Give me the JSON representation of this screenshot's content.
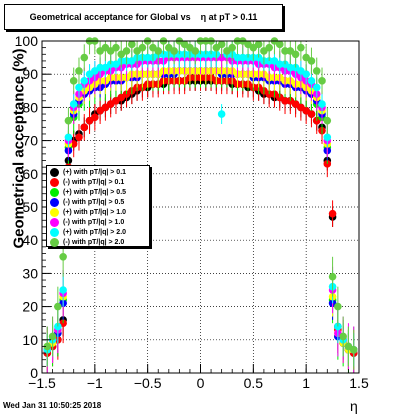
{
  "title": "Geometrical acceptance for Global vs    η at pT > 0.11",
  "timestamp": "Wed Jan 31 10:50:25 2018",
  "chart_data": {
    "type": "scatter",
    "xlabel": "η",
    "ylabel": "Geometrical acceptance (%)",
    "xlim": [
      -1.5,
      1.5
    ],
    "ylim": [
      0,
      100
    ],
    "xticks": [
      "−1.5",
      "−1",
      "−0.5",
      "0",
      "0.5",
      "1",
      "1.5"
    ],
    "yticks": [
      "0",
      "10",
      "20",
      "30",
      "40",
      "50",
      "60",
      "70",
      "80",
      "90",
      "100"
    ],
    "grid": true,
    "legend_position": "middle-left",
    "x": [
      -1.45,
      -1.4,
      -1.35,
      -1.3,
      -1.25,
      -1.2,
      -1.15,
      -1.1,
      -1.05,
      -1.0,
      -0.95,
      -0.9,
      -0.85,
      -0.8,
      -0.75,
      -0.7,
      -0.65,
      -0.6,
      -0.55,
      -0.5,
      -0.45,
      -0.4,
      -0.35,
      -0.3,
      -0.25,
      -0.2,
      -0.15,
      -0.1,
      -0.05,
      0.0,
      0.05,
      0.1,
      0.15,
      0.2,
      0.25,
      0.3,
      0.35,
      0.4,
      0.45,
      0.5,
      0.55,
      0.6,
      0.65,
      0.7,
      0.75,
      0.8,
      0.85,
      0.9,
      0.95,
      1.0,
      1.05,
      1.1,
      1.15,
      1.2,
      1.25,
      1.3,
      1.35,
      1.4,
      1.45
    ],
    "series": [
      {
        "name": "(+) with pT/|q| > 0.1",
        "color": "#000000",
        "values": [
          6,
          8,
          10,
          16,
          64,
          70,
          72,
          74,
          76,
          78,
          79,
          80,
          81,
          82,
          82,
          83,
          84,
          85,
          86,
          86,
          87,
          87,
          87,
          88,
          88,
          88,
          88,
          88,
          88,
          88,
          88,
          88,
          88,
          88,
          88,
          87,
          87,
          87,
          86,
          86,
          85,
          84,
          84,
          83,
          83,
          82,
          82,
          81,
          80,
          79,
          78,
          76,
          74,
          64,
          47,
          14,
          9,
          7,
          6
        ]
      },
      {
        "name": "(-) with pT/|q| > 0.1",
        "color": "#ff0000",
        "values": [
          6,
          8,
          10,
          15,
          62,
          69,
          71,
          74,
          76,
          77,
          79,
          80,
          81,
          82,
          83,
          84,
          85,
          86,
          86,
          87,
          87,
          87,
          88,
          88,
          88,
          88,
          88,
          89,
          89,
          89,
          89,
          89,
          88,
          88,
          88,
          88,
          87,
          87,
          87,
          86,
          86,
          85,
          84,
          84,
          83,
          82,
          82,
          81,
          80,
          79,
          78,
          76,
          73,
          63,
          48,
          13,
          9,
          7,
          6
        ]
      },
      {
        "name": "(+) with pT/|q| > 0.5",
        "color": "#00ee00",
        "values": [
          7,
          9,
          12,
          22,
          68,
          77,
          81,
          84,
          85,
          86,
          87,
          87,
          88,
          88,
          89,
          89,
          89,
          90,
          90,
          90,
          90,
          90,
          90,
          90,
          91,
          91,
          91,
          91,
          91,
          91,
          91,
          91,
          91,
          91,
          91,
          90,
          90,
          90,
          90,
          90,
          89,
          89,
          89,
          88,
          88,
          88,
          87,
          87,
          86,
          85,
          84,
          81,
          77,
          68,
          22,
          11,
          9,
          7,
          7
        ]
      },
      {
        "name": "(-) with pT/|q| > 0.5",
        "color": "#0000ff",
        "values": [
          7,
          9,
          12,
          21,
          67,
          78,
          82,
          84,
          85,
          86,
          86,
          87,
          88,
          88,
          88,
          89,
          89,
          89,
          90,
          90,
          90,
          90,
          90,
          90,
          90,
          91,
          91,
          91,
          91,
          91,
          91,
          91,
          91,
          90,
          90,
          90,
          90,
          90,
          90,
          89,
          89,
          89,
          88,
          88,
          88,
          87,
          87,
          86,
          86,
          85,
          84,
          82,
          78,
          67,
          21,
          11,
          9,
          7,
          7
        ]
      },
      {
        "name": "(+) with pT/|q| > 1.0",
        "color": "#ffff00",
        "values": [
          7,
          9,
          13,
          23,
          69,
          79,
          83,
          85,
          86,
          87,
          88,
          88,
          89,
          89,
          89,
          89,
          90,
          90,
          90,
          90,
          90,
          90,
          91,
          91,
          91,
          91,
          91,
          91,
          91,
          91,
          91,
          91,
          91,
          91,
          91,
          91,
          90,
          90,
          90,
          90,
          90,
          90,
          89,
          89,
          89,
          88,
          88,
          87,
          87,
          86,
          85,
          83,
          79,
          69,
          23,
          12,
          9,
          7,
          7
        ]
      },
      {
        "name": "(-) with pT/|q| > 1.0",
        "color": "#ff00ff",
        "values": [
          7,
          10,
          13,
          24,
          70,
          80,
          84,
          87,
          88,
          89,
          90,
          91,
          91,
          92,
          92,
          93,
          93,
          93,
          94,
          94,
          94,
          94,
          94,
          95,
          95,
          95,
          95,
          95,
          95,
          95,
          95,
          95,
          95,
          95,
          95,
          94,
          94,
          94,
          94,
          94,
          93,
          93,
          93,
          92,
          92,
          91,
          91,
          90,
          89,
          88,
          87,
          84,
          80,
          70,
          25,
          12,
          10,
          8,
          7
        ]
      },
      {
        "name": "(+) with pT/|q| > 2.0",
        "color": "#00ffff",
        "values": [
          7,
          10,
          14,
          25,
          71,
          81,
          86,
          88,
          90,
          91,
          92,
          92,
          93,
          93,
          94,
          94,
          94,
          95,
          95,
          95,
          95,
          96,
          96,
          96,
          96,
          96,
          96,
          96,
          96,
          96,
          96,
          96,
          96,
          78,
          96,
          96,
          95,
          95,
          95,
          95,
          95,
          94,
          94,
          94,
          93,
          93,
          92,
          92,
          91,
          90,
          88,
          86,
          81,
          71,
          26,
          14,
          10,
          8,
          7
        ]
      },
      {
        "name": "(-) with pT/|q| > 2.0",
        "color": "#66cc44",
        "values": [
          8,
          11,
          20,
          35,
          76,
          88,
          91,
          95,
          100,
          100,
          97,
          98,
          97,
          98,
          96,
          97,
          99,
          97,
          98,
          100,
          98,
          97,
          100,
          98,
          97,
          100,
          99,
          98,
          97,
          100,
          100,
          100,
          98,
          99,
          97,
          98,
          100,
          100,
          99,
          98,
          99,
          97,
          98,
          100,
          99,
          97,
          97,
          96,
          98,
          95,
          94,
          91,
          88,
          76,
          29,
          20,
          11,
          8,
          7
        ]
      }
    ]
  }
}
